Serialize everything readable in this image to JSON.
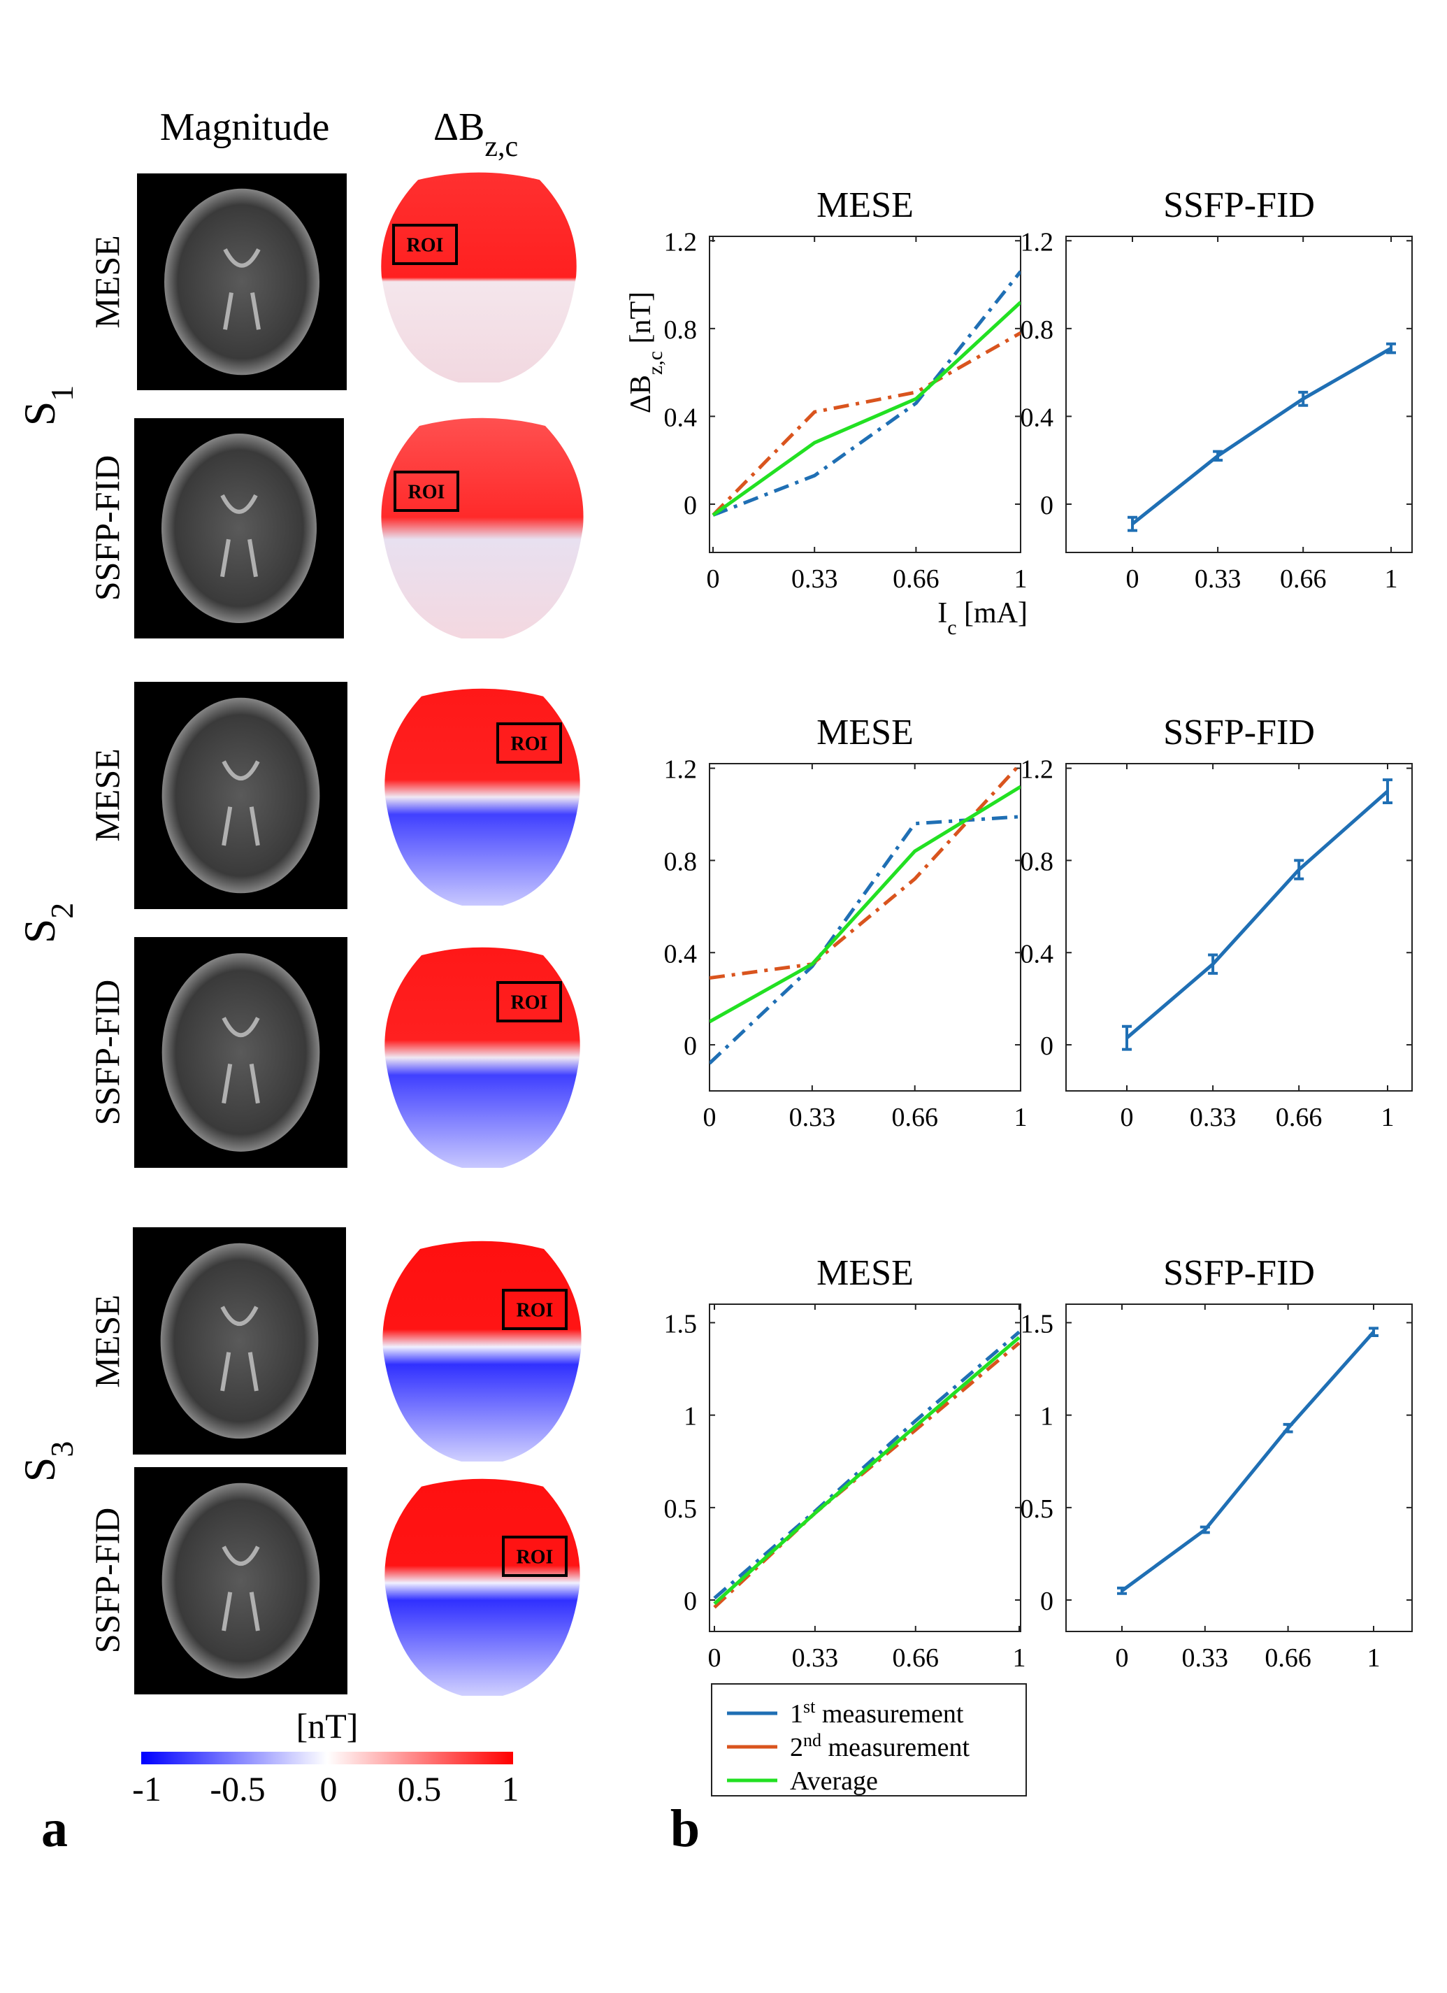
{
  "panel_a": {
    "label": "a",
    "col_headers": [
      "Magnitude",
      "ΔB"
    ],
    "col_header_sub": "z,c",
    "subjects": [
      {
        "name": "S",
        "sub": "1",
        "rows": [
          "MESE",
          "SSFP-FID"
        ]
      },
      {
        "name": "S",
        "sub": "2",
        "rows": [
          "MESE",
          "SSFP-FID"
        ]
      },
      {
        "name": "S",
        "sub": "3",
        "rows": [
          "MESE",
          "SSFP-FID"
        ]
      }
    ],
    "roi_label": "ROI",
    "colorbar": {
      "unit": "[nT]",
      "ticks": [
        "-1",
        "-0.5",
        "0",
        "0.5",
        "1"
      ],
      "low_color": "#0000ff",
      "mid_color": "#ffffff",
      "high_color": "#ff0000"
    }
  },
  "panel_b": {
    "label": "b",
    "legend": [
      {
        "text": "1",
        "sup": "st",
        "rest": " measurement",
        "color": "#1f6fb4"
      },
      {
        "text": "2",
        "sup": "nd",
        "rest": " measurement",
        "color": "#d9541e"
      },
      {
        "text": "Average",
        "sup": "",
        "rest": "",
        "color": "#22e022"
      }
    ]
  },
  "chart_data": [
    {
      "type": "line",
      "title": "MESE",
      "ylabel": "ΔB",
      "ylabel_sub": "z,c",
      "ylabel_unit": " [nT]",
      "xlabel": "I",
      "xlabel_sub": "c",
      "xlabel_unit": " [mA]",
      "x": [
        0,
        0.33,
        0.66,
        1
      ],
      "xticks": [
        "0",
        "0.33",
        "0.66",
        "1"
      ],
      "yticks": [
        "0",
        "0.4",
        "0.8",
        "1.2"
      ],
      "ytick_values": [
        0,
        0.4,
        0.8,
        1.2
      ],
      "ylim": [
        -0.22,
        1.22
      ],
      "series": [
        {
          "name": "1st measurement",
          "values": [
            -0.05,
            0.13,
            0.46,
            1.06
          ],
          "color": "#1f6fb4",
          "dash": "dashdot"
        },
        {
          "name": "2nd measurement",
          "values": [
            -0.05,
            0.42,
            0.51,
            0.78
          ],
          "color": "#d9541e",
          "dash": "dashdot"
        },
        {
          "name": "Average",
          "values": [
            -0.05,
            0.28,
            0.48,
            0.92
          ],
          "color": "#22e022",
          "dash": "solid"
        }
      ]
    },
    {
      "type": "line",
      "title": "SSFP-FID",
      "x": [
        0,
        0.33,
        0.66,
        1
      ],
      "xticks": [
        "0",
        "0.33",
        "0.66",
        "1"
      ],
      "yticks": [
        "0",
        "0.4",
        "0.8",
        "1.2"
      ],
      "ytick_values": [
        0,
        0.4,
        0.8,
        1.2
      ],
      "ylim": [
        -0.22,
        1.22
      ],
      "series": [
        {
          "name": "",
          "values": [
            -0.09,
            0.22,
            0.48,
            0.71
          ],
          "errors": [
            0.03,
            0.02,
            0.03,
            0.02
          ],
          "color": "#1f6fb4",
          "dash": "solid"
        }
      ]
    },
    {
      "type": "line",
      "title": "MESE",
      "x": [
        0,
        0.33,
        0.66,
        1
      ],
      "xticks": [
        "0",
        "0.33",
        "0.66",
        "1"
      ],
      "yticks": [
        "0",
        "0.4",
        "0.8",
        "1.2"
      ],
      "ytick_values": [
        0,
        0.4,
        0.8,
        1.2
      ],
      "ylim": [
        -0.2,
        1.22
      ],
      "series": [
        {
          "name": "1st measurement",
          "values": [
            -0.08,
            0.34,
            0.96,
            0.99
          ],
          "color": "#1f6fb4",
          "dash": "dashdot"
        },
        {
          "name": "2nd measurement",
          "values": [
            0.29,
            0.35,
            0.72,
            1.22
          ],
          "color": "#d9541e",
          "dash": "dashdot"
        },
        {
          "name": "Average",
          "values": [
            0.1,
            0.35,
            0.84,
            1.12
          ],
          "color": "#22e022",
          "dash": "solid"
        }
      ]
    },
    {
      "type": "line",
      "title": "SSFP-FID",
      "x": [
        0,
        0.33,
        0.66,
        1
      ],
      "xticks": [
        "0",
        "0.33",
        "0.66",
        "1"
      ],
      "yticks": [
        "0",
        "0.4",
        "0.8",
        "1.2"
      ],
      "ytick_values": [
        0,
        0.4,
        0.8,
        1.2
      ],
      "ylim": [
        -0.2,
        1.22
      ],
      "series": [
        {
          "name": "",
          "values": [
            0.03,
            0.35,
            0.76,
            1.1
          ],
          "errors": [
            0.05,
            0.04,
            0.04,
            0.05
          ],
          "color": "#1f6fb4",
          "dash": "solid"
        }
      ]
    },
    {
      "type": "line",
      "title": "MESE",
      "x": [
        0,
        0.33,
        0.66,
        1
      ],
      "xticks": [
        "0",
        "0.33",
        "0.66",
        "1"
      ],
      "yticks": [
        "0",
        "0.5",
        "1",
        "1.5"
      ],
      "ytick_values": [
        0,
        0.5,
        1,
        1.5
      ],
      "ylim": [
        -0.17,
        1.6
      ],
      "series": [
        {
          "name": "1st measurement",
          "values": [
            0.01,
            0.48,
            0.97,
            1.45
          ],
          "color": "#1f6fb4",
          "dash": "dashdot"
        },
        {
          "name": "2nd measurement",
          "values": [
            -0.04,
            0.47,
            0.92,
            1.39
          ],
          "color": "#d9541e",
          "dash": "dashdot"
        },
        {
          "name": "Average",
          "values": [
            -0.02,
            0.47,
            0.94,
            1.42
          ],
          "color": "#22e022",
          "dash": "solid"
        }
      ]
    },
    {
      "type": "line",
      "title": "SSFP-FID",
      "x": [
        0,
        0.33,
        0.66,
        1
      ],
      "xticks": [
        "0",
        "0.33",
        "0.66",
        "1"
      ],
      "yticks": [
        "0",
        "0.5",
        "1",
        "1.5"
      ],
      "ytick_values": [
        0,
        0.5,
        1,
        1.5
      ],
      "ylim": [
        -0.17,
        1.6
      ],
      "series": [
        {
          "name": "",
          "values": [
            0.05,
            0.38,
            0.93,
            1.45
          ],
          "errors": [
            0.015,
            0.015,
            0.02,
            0.02
          ],
          "color": "#1f6fb4",
          "dash": "solid"
        }
      ]
    }
  ]
}
